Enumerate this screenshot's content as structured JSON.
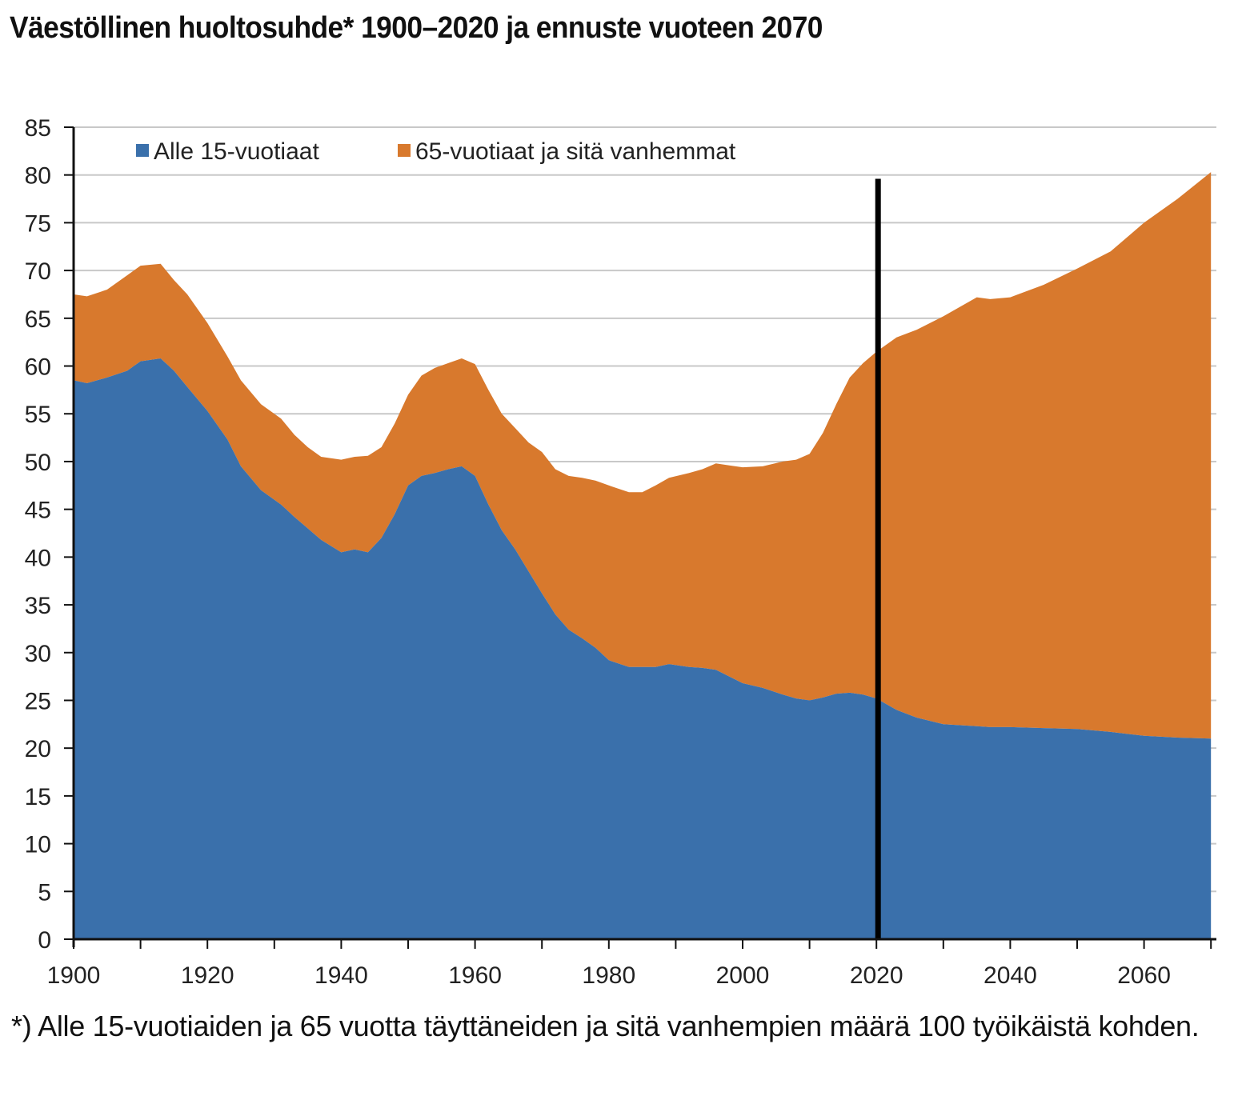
{
  "title": "Väestöllinen huoltosuhde* 1900–2020 ja ennuste vuoteen 2070",
  "footnote": "*) Alle 15-vuotiaiden ja 65 vuotta täyttäneiden ja sitä vanhempien määrä 100 työikäistä kohden.",
  "colors": {
    "under15": "#3a70ab",
    "over65": "#d8792d",
    "grid": "#c8c8c8",
    "marker": "#000000"
  },
  "chart_data": {
    "type": "area",
    "stacked": true,
    "title": "Väestöllinen huoltosuhde* 1900–2020 ja ennuste vuoteen 2070",
    "xlabel": "",
    "ylabel": "",
    "xlim": [
      1900,
      2071
    ],
    "ylim": [
      0,
      85
    ],
    "grid": true,
    "legend_position": "top-left",
    "x_ticks": [
      1900,
      1920,
      1940,
      1960,
      1980,
      2000,
      2020,
      2040,
      2060
    ],
    "x_tick_labels": [
      "1900",
      "1920",
      "1940",
      "1960",
      "1980",
      "2000",
      "2020",
      "2040",
      "2060"
    ],
    "y_ticks": [
      0,
      5,
      10,
      15,
      20,
      25,
      30,
      35,
      40,
      45,
      50,
      55,
      60,
      65,
      70,
      75,
      80,
      85
    ],
    "y_tick_labels": [
      "0",
      "5",
      "10",
      "15",
      "20",
      "25",
      "30",
      "35",
      "40",
      "45",
      "50",
      "55",
      "60",
      "65",
      "70",
      "75",
      "80",
      "85"
    ],
    "vertical_marker_x": 2020,
    "x": [
      1900,
      1902,
      1905,
      1908,
      1910,
      1913,
      1915,
      1917,
      1920,
      1923,
      1925,
      1928,
      1931,
      1933,
      1935,
      1937,
      1940,
      1942,
      1944,
      1946,
      1948,
      1950,
      1952,
      1954,
      1956,
      1958,
      1960,
      1962,
      1964,
      1966,
      1968,
      1970,
      1972,
      1974,
      1976,
      1978,
      1980,
      1983,
      1985,
      1987,
      1989,
      1992,
      1994,
      1996,
      1998,
      2000,
      2003,
      2006,
      2008,
      2010,
      2012,
      2014,
      2016,
      2018,
      2020,
      2023,
      2026,
      2030,
      2035,
      2037,
      2040,
      2045,
      2050,
      2055,
      2060,
      2065,
      2070
    ],
    "series": [
      {
        "name": "Alle 15-vuotiaat",
        "color": "#3a70ab",
        "values": [
          58.5,
          58.2,
          58.8,
          59.5,
          60.5,
          60.8,
          59.5,
          57.8,
          55.3,
          52.3,
          49.5,
          47,
          45.5,
          44.2,
          43,
          41.8,
          40.5,
          40.8,
          40.5,
          42,
          44.5,
          47.5,
          48.5,
          48.8,
          49.2,
          49.5,
          48.5,
          45.5,
          42.8,
          40.8,
          38.5,
          36.2,
          34,
          32.4,
          31.5,
          30.5,
          29.2,
          28.5,
          28.5,
          28.5,
          28.8,
          28.5,
          28.4,
          28.2,
          27.5,
          26.8,
          26.3,
          25.6,
          25.2,
          25,
          25.3,
          25.7,
          25.8,
          25.6,
          25.2,
          24,
          23.2,
          22.5,
          22.3,
          22.2,
          22.2,
          22.1,
          22,
          21.7,
          21.3,
          21.1,
          21
        ]
      },
      {
        "name": "65-vuotiaat ja sitä vanhemmat",
        "color": "#d8792d",
        "values": [
          9,
          9.1,
          9.2,
          10,
          10,
          9.9,
          9.5,
          9.7,
          9.2,
          8.7,
          9,
          9,
          9,
          8.6,
          8.5,
          8.7,
          9.7,
          9.7,
          10.1,
          9.5,
          9.5,
          9.5,
          10.5,
          11,
          11.1,
          11.3,
          11.7,
          12,
          12.2,
          12.7,
          13.5,
          14.8,
          15.2,
          16.1,
          16.8,
          17.5,
          18.3,
          18.3,
          18.3,
          19,
          19.5,
          20.3,
          20.8,
          21.6,
          22.1,
          22.6,
          23.2,
          24.4,
          25,
          25.8,
          27.7,
          30.3,
          33,
          34.7,
          36.3,
          39,
          40.6,
          42.7,
          44.9,
          44.8,
          45,
          46.4,
          48.2,
          50.3,
          53.7,
          56.4,
          59.3
        ]
      }
    ]
  }
}
